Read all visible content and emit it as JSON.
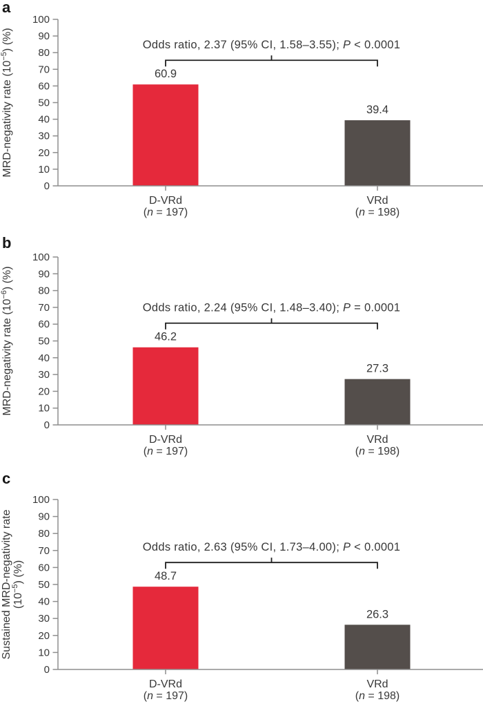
{
  "colors": {
    "bar_red": "#e5293b",
    "bar_gray": "#544e4b",
    "axis": "#8e8e8e",
    "text": "#383838",
    "bracket": "#1f1f1f",
    "background": "#ffffff"
  },
  "chart_data": [
    {
      "type": "bar",
      "panel_label": "a",
      "ylabel": "MRD-negativity rate (10−5) (%)",
      "ylabel_lines": [
        [
          {
            "t": "MRD-negativity rate (10"
          },
          {
            "t": "−5",
            "sup": true
          },
          {
            "t": ") (%)"
          }
        ]
      ],
      "ylim": [
        0,
        100
      ],
      "yticks": [
        0,
        10,
        20,
        30,
        40,
        50,
        60,
        70,
        80,
        90,
        100
      ],
      "categories": [
        {
          "label": "D-VRd",
          "n_line": {
            "pre": "(",
            "italic": "n",
            "post": " = 197)"
          }
        },
        {
          "label": "VRd",
          "n_line": {
            "pre": "(",
            "italic": "n",
            "post": " = 198)"
          }
        }
      ],
      "values": [
        60.9,
        39.4
      ],
      "value_labels": [
        "60.9",
        "39.4"
      ],
      "bar_colors": [
        "#e5293b",
        "#544e4b"
      ],
      "annotation": {
        "text": "Odds ratio, 2.37 (95% CI, 1.58–3.55); P < 0.0001",
        "segments": [
          {
            "t": "Odds ratio, 2.37 (95% CI, 1.58–3.55); "
          },
          {
            "t": "P",
            "italic": true
          },
          {
            "t": " < 0.0001"
          }
        ]
      },
      "legend": "none",
      "grid": false
    },
    {
      "type": "bar",
      "panel_label": "b",
      "ylabel": "MRD-negativity rate (10−6) (%)",
      "ylabel_lines": [
        [
          {
            "t": "MRD-negativity rate (10"
          },
          {
            "t": "−6",
            "sup": true
          },
          {
            "t": ") (%)"
          }
        ]
      ],
      "ylim": [
        0,
        100
      ],
      "yticks": [
        0,
        10,
        20,
        30,
        40,
        50,
        60,
        70,
        80,
        90,
        100
      ],
      "categories": [
        {
          "label": "D-VRd",
          "n_line": {
            "pre": "(",
            "italic": "n",
            "post": " = 197)"
          }
        },
        {
          "label": "VRd",
          "n_line": {
            "pre": "(",
            "italic": "n",
            "post": " = 198)"
          }
        }
      ],
      "values": [
        46.2,
        27.3
      ],
      "value_labels": [
        "46.2",
        "27.3"
      ],
      "bar_colors": [
        "#e5293b",
        "#544e4b"
      ],
      "annotation": {
        "text": "Odds ratio, 2.24 (95% CI, 1.48–3.40); P = 0.0001",
        "segments": [
          {
            "t": "Odds ratio, 2.24 (95% CI, 1.48–3.40); "
          },
          {
            "t": "P",
            "italic": true
          },
          {
            "t": " = 0.0001"
          }
        ]
      },
      "legend": "none",
      "grid": false
    },
    {
      "type": "bar",
      "panel_label": "c",
      "ylabel": "Sustained MRD-negativity rate (10−5) (%)",
      "ylabel_lines": [
        [
          {
            "t": "Sustained MRD-negativity rate"
          }
        ],
        [
          {
            "t": "(10"
          },
          {
            "t": "−5",
            "sup": true
          },
          {
            "t": ") (%)"
          }
        ]
      ],
      "ylim": [
        0,
        100
      ],
      "yticks": [
        0,
        10,
        20,
        30,
        40,
        50,
        60,
        70,
        80,
        90,
        100
      ],
      "categories": [
        {
          "label": "D-VRd",
          "n_line": {
            "pre": "(",
            "italic": "n",
            "post": " = 197)"
          }
        },
        {
          "label": "VRd",
          "n_line": {
            "pre": "(",
            "italic": "n",
            "post": " = 198)"
          }
        }
      ],
      "values": [
        48.7,
        26.3
      ],
      "value_labels": [
        "48.7",
        "26.3"
      ],
      "bar_colors": [
        "#e5293b",
        "#544e4b"
      ],
      "annotation": {
        "text": "Odds ratio, 2.63 (95% CI, 1.73–4.00); P < 0.0001",
        "segments": [
          {
            "t": "Odds ratio, 2.63 (95% CI, 1.73–4.00); "
          },
          {
            "t": "P",
            "italic": true
          },
          {
            "t": " < 0.0001"
          }
        ]
      },
      "legend": "none",
      "grid": false
    }
  ]
}
